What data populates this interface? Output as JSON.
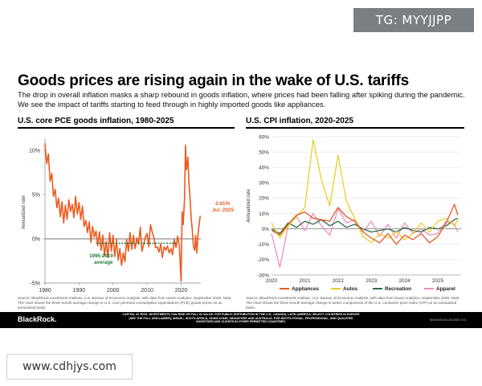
{
  "watermarks": {
    "top": "TG: MYYJJPP",
    "bottom": "www.cdhjys.com"
  },
  "header": {
    "title": "Goods prices are rising again in the wake of U.S. tariffs",
    "subtitle": "The drop in overall inflation masks a sharp rebound in goods inflation, where prices had been falling after spiking during the pandemic. We see the impact of tariffs starting to feed through in highly imported goods like appliances."
  },
  "footer": {
    "brand": "BlackRock.",
    "disclaimer": "CAPITAL AT RISK. INVESTMENTS CAN RISE OR FALL IN VALUE. FOR PUBLIC DISTRIBUTION IN THE U.S., CANADA, LATIN AMERICA, SELECT COUNTRIES IN EUROPE (SEE THE FULL DISCLAIMER), ISRAEL, SOUTH AFRICA, HONG KONG, SINGAPORE AND AUSTRALIA. FOR INSTITUTIONAL, PROFESSIONAL, AND QUALIFIED INVESTORS AND CLIENTS IN OTHER PERMITTED COUNTRIES.",
    "code": "BIIM0925U/M-4812685-7/10"
  },
  "chart_data": [
    {
      "type": "line",
      "title": "U.S. core PCE goods inflation, 1980-2025",
      "ylabel": "Annualized rate",
      "xlim": [
        1980,
        2025.8
      ],
      "ylim": [
        -5,
        11
      ],
      "yticks": [
        -5,
        0,
        5,
        10
      ],
      "ytick_labels": [
        "-5%",
        "0%",
        "5%",
        "10%"
      ],
      "xticks": [
        1980,
        1990,
        2000,
        2010,
        2020
      ],
      "xtick_labels": [
        "1980",
        "1990",
        "2000",
        "2010",
        "2020"
      ],
      "color": "#ef5a1e",
      "series": [
        {
          "name": "Core PCE goods inflation",
          "x": [
            1980,
            1980.5,
            1981,
            1981.5,
            1982,
            1982.5,
            1983,
            1983.5,
            1984,
            1984.5,
            1985,
            1985.5,
            1986,
            1986.5,
            1987,
            1987.5,
            1988,
            1988.5,
            1989,
            1989.5,
            1990,
            1990.5,
            1991,
            1991.5,
            1992,
            1992.5,
            1993,
            1993.5,
            1994,
            1994.5,
            1995,
            1995.5,
            1996,
            1996.5,
            1997,
            1997.5,
            1998,
            1998.5,
            1999,
            1999.5,
            2000,
            2000.5,
            2001,
            2001.5,
            2002,
            2002.5,
            2003,
            2003.5,
            2004,
            2004.5,
            2005,
            2005.5,
            2006,
            2006.5,
            2007,
            2007.5,
            2008,
            2008.5,
            2009,
            2009.5,
            2010,
            2010.5,
            2011,
            2011.5,
            2012,
            2012.5,
            2013,
            2013.5,
            2014,
            2014.5,
            2015,
            2015.5,
            2016,
            2016.5,
            2017,
            2017.5,
            2018,
            2018.5,
            2019,
            2019.5,
            2020,
            2020.3,
            2020.6,
            2021,
            2021.3,
            2021.6,
            2022,
            2022.3,
            2022.6,
            2023,
            2023.3,
            2023.6,
            2024,
            2024.3,
            2024.6,
            2025,
            2025.3,
            2025.6
          ],
          "values": [
            10.8,
            8.5,
            9.6,
            6.5,
            7.4,
            4.8,
            5.6,
            3.5,
            4.6,
            2.5,
            4.2,
            1.8,
            3.8,
            2.2,
            4.4,
            3.1,
            3.9,
            2.4,
            4.8,
            2.8,
            4.1,
            2.2,
            3.7,
            1.4,
            2.1,
            0.7,
            1.9,
            -0.4,
            1.4,
            0.2,
            0.9,
            -0.8,
            0.8,
            -1.3,
            0.4,
            -1.9,
            -0.3,
            -2.1,
            0.7,
            -1.4,
            0.4,
            -2.0,
            -0.1,
            -2.4,
            -1.1,
            -3.0,
            -1.6,
            -2.6,
            -0.1,
            -1.4,
            0.7,
            -1.2,
            0.4,
            -1.1,
            0.1,
            -0.6,
            1.3,
            -1.4,
            -0.6,
            0.2,
            0.6,
            -0.9,
            1.6,
            0.8,
            0.2,
            -1.0,
            -0.9,
            -1.5,
            -0.6,
            -2.1,
            -0.9,
            -1.3,
            -0.8,
            -1.6,
            -1.1,
            -1.8,
            -0.1,
            -1.0,
            0.3,
            -0.8,
            -4.8,
            3.1,
            1.6,
            4.5,
            10.6,
            7.8,
            9.2,
            6.3,
            4.8,
            2.2,
            1.0,
            -0.8,
            -1.3,
            0.4,
            -1.6,
            0.6,
            1.6,
            2.61
          ]
        }
      ],
      "reference_line": {
        "label": "1995-2019 average",
        "value": -0.5,
        "x_start": 1995,
        "x_end": 2019
      },
      "annotation": {
        "value_label": "2.61%",
        "date_label": "Jul. 2025"
      },
      "source": "Source: BlackRock Investment Institute, U.S. Bureau of Economic Analysis, with data from Haver Analytics, September 2025. Note: The chart shows the three-month average change in U.S. core personal consumption expenditures (PCE) goods prices on an annualized basis."
    },
    {
      "type": "line",
      "title": "U.S. CPI inflation, 2020-2025",
      "ylabel": "Annualized rate",
      "xlim": [
        2020,
        2025.7
      ],
      "ylim": [
        -30,
        60
      ],
      "yticks": [
        -30,
        -20,
        -10,
        0,
        10,
        20,
        30,
        40,
        50,
        60
      ],
      "ytick_labels": [
        "-30%",
        "-20%",
        "-10%",
        "0%",
        "10%",
        "20%",
        "30%",
        "40%",
        "50%",
        "60%"
      ],
      "xticks": [
        2020,
        2021,
        2022,
        2023,
        2024,
        2025
      ],
      "xtick_labels": [
        "2020",
        "2021",
        "2022",
        "2023",
        "2024",
        "2025"
      ],
      "x": [
        2020.0,
        2020.25,
        2020.5,
        2020.75,
        2021.0,
        2021.25,
        2021.5,
        2021.75,
        2022.0,
        2022.25,
        2022.5,
        2022.75,
        2023.0,
        2023.25,
        2023.5,
        2023.75,
        2024.0,
        2024.25,
        2024.5,
        2024.75,
        2025.0,
        2025.25,
        2025.5,
        2025.6
      ],
      "series": [
        {
          "name": "Appliances",
          "color": "#e15a26",
          "values": [
            -1,
            -4,
            3,
            9,
            11,
            7,
            6,
            5,
            14,
            8,
            5,
            -2,
            -6,
            -9,
            -3,
            -10,
            -4,
            -7,
            -3,
            -9,
            -5,
            4,
            16,
            9
          ]
        },
        {
          "name": "Autos",
          "color": "#e8cf29",
          "values": [
            4,
            -6,
            2,
            8,
            14,
            58,
            32,
            15,
            48,
            18,
            7,
            -5,
            -9,
            -3,
            -6,
            -2,
            -7,
            -3,
            4,
            -2,
            5,
            7,
            2,
            6
          ]
        },
        {
          "name": "Recreation",
          "color": "#2f6b47",
          "values": [
            0,
            -3,
            4,
            1,
            5,
            3,
            6,
            2,
            5,
            1,
            3,
            0,
            -2,
            -1,
            0,
            -2,
            1,
            -1,
            -2,
            1,
            0,
            2,
            6,
            7
          ]
        },
        {
          "name": "Apparel",
          "color": "#ef8fbf",
          "values": [
            -3,
            -25,
            2,
            8,
            -1,
            10,
            2,
            -4,
            13,
            4,
            6,
            -2,
            5,
            -5,
            3,
            -6,
            4,
            -3,
            0,
            -4,
            -3,
            5,
            3,
            -2
          ]
        }
      ],
      "source": "Source: BlackRock Investment Institute, U.S. Bureau of Economic Analysis, with data from Haver Analytics, September 2025. Note: The chart shows the three-month average change in select components of the U.S. consumer price index (CPI) on an annualized basis."
    }
  ]
}
